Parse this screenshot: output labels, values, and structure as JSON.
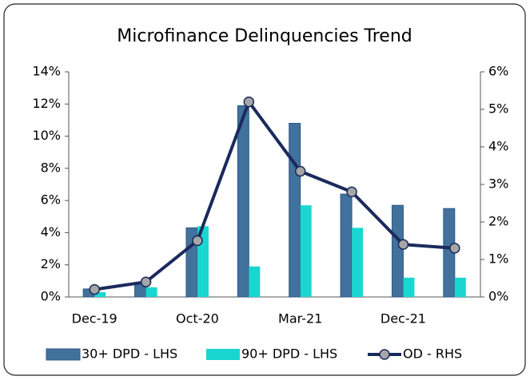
{
  "chart_data": {
    "type": "bar_line",
    "title": "Microfinance Delinquencies Trend",
    "categories": [
      "Dec-19",
      null,
      "Oct-20",
      null,
      "Mar-21",
      null,
      "Dec-21",
      null
    ],
    "series": [
      {
        "name": "30+ DPD - LHS",
        "color": "#41719c",
        "type": "bar",
        "values": [
          0.5,
          0.9,
          4.3,
          11.9,
          10.8,
          6.4,
          5.7,
          5.5
        ]
      },
      {
        "name": "90+ DPD - LHS",
        "color": "#19d6d0",
        "type": "bar",
        "values": [
          0.3,
          0.6,
          4.4,
          1.9,
          5.7,
          4.3,
          1.2,
          1.2
        ]
      },
      {
        "name": "OD - RHS",
        "color": "#1b2a5c",
        "marker_color": "#a6a6a6",
        "type": "line",
        "axis": "y2",
        "values": [
          0.2,
          0.4,
          1.5,
          5.2,
          3.35,
          2.8,
          1.4,
          1.3
        ]
      }
    ],
    "ylim": [
      0,
      14
    ],
    "yticks": [
      {
        "value": 0,
        "label": "0%"
      },
      {
        "value": 2,
        "label": "2%"
      },
      {
        "value": 4,
        "label": "4%"
      },
      {
        "value": 6,
        "label": "6%"
      },
      {
        "value": 8,
        "label": "8%"
      },
      {
        "value": 10,
        "label": "10%"
      },
      {
        "value": 12,
        "label": "12%"
      },
      {
        "value": 14,
        "label": "14%"
      }
    ],
    "y2lim": [
      0,
      6
    ],
    "y2ticks": [
      {
        "value": 0,
        "label": "0%"
      },
      {
        "value": 1,
        "label": "1%"
      },
      {
        "value": 2,
        "label": "2%"
      },
      {
        "value": 3,
        "label": "3%"
      },
      {
        "value": 4,
        "label": "4%"
      },
      {
        "value": 5,
        "label": "5%"
      },
      {
        "value": 6,
        "label": "6%"
      }
    ],
    "legend": "bottom"
  }
}
